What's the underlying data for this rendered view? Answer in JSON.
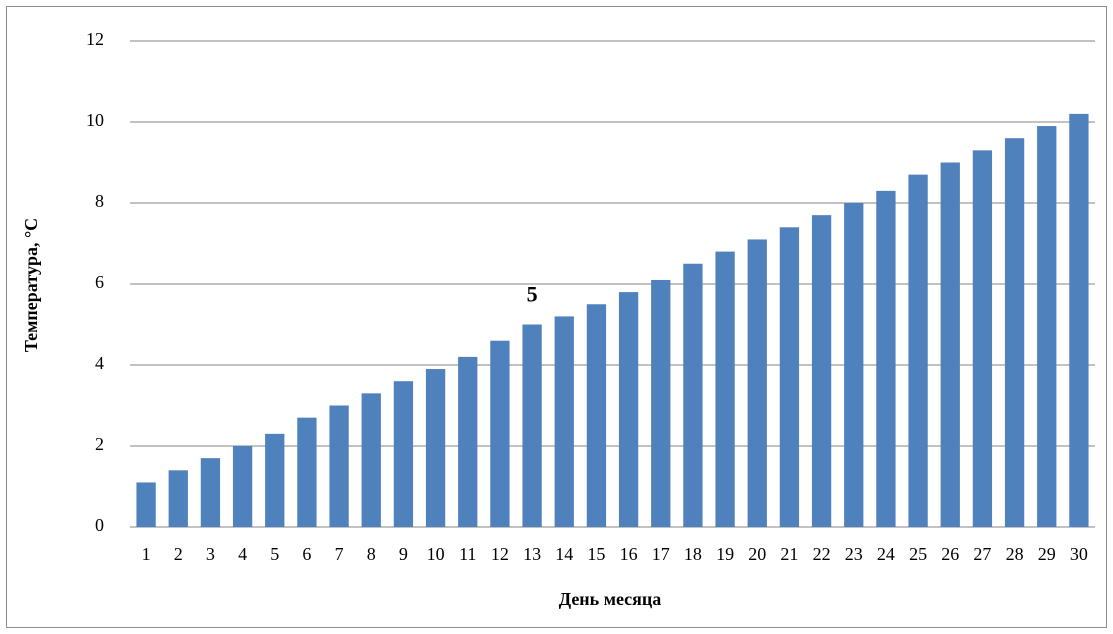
{
  "chart_data": {
    "type": "bar",
    "xlabel": "День месяца",
    "ylabel": "Температура, °C",
    "categories": [
      "1",
      "2",
      "3",
      "4",
      "5",
      "6",
      "7",
      "8",
      "9",
      "10",
      "11",
      "12",
      "13",
      "14",
      "15",
      "16",
      "17",
      "18",
      "19",
      "20",
      "21",
      "22",
      "23",
      "24",
      "25",
      "26",
      "27",
      "28",
      "29",
      "30"
    ],
    "values": [
      1.1,
      1.4,
      1.7,
      2.0,
      2.3,
      2.7,
      3.0,
      3.3,
      3.6,
      3.9,
      4.2,
      4.6,
      5.0,
      5.2,
      5.5,
      5.8,
      6.1,
      6.5,
      6.8,
      7.1,
      7.4,
      7.7,
      8.0,
      8.3,
      8.7,
      9.0,
      9.3,
      9.6,
      9.9,
      10.2
    ],
    "value_labels": [
      null,
      null,
      null,
      null,
      null,
      null,
      null,
      null,
      null,
      null,
      null,
      null,
      "5",
      null,
      null,
      null,
      null,
      null,
      null,
      null,
      null,
      null,
      null,
      null,
      null,
      null,
      null,
      null,
      null,
      null
    ],
    "color": "#4f81bd",
    "ylim": [
      0,
      12
    ],
    "yticks": [
      0,
      2,
      4,
      6,
      8,
      10,
      12
    ],
    "grid": true
  }
}
